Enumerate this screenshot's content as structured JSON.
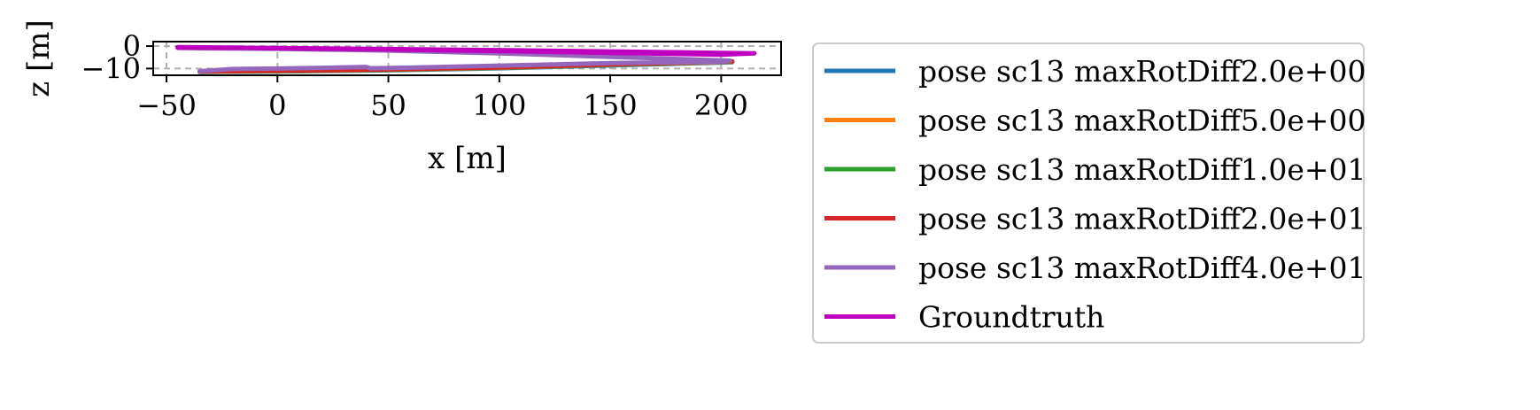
{
  "chart_data": {
    "type": "line",
    "xlabel": "x [m]",
    "ylabel": "z [m]",
    "xlim": [
      -56,
      227
    ],
    "ylim": [
      -13,
      2
    ],
    "xticks": [
      -50,
      0,
      50,
      100,
      150,
      200
    ],
    "xtick_labels": [
      "−50",
      "0",
      "50",
      "100",
      "150",
      "200"
    ],
    "yticks": [
      0,
      -10
    ],
    "ytick_labels": [
      "0",
      "−10"
    ],
    "grid": true,
    "legend_placement": "right, outside plot",
    "series": [
      {
        "name": "pose sc13 maxRotDiff2.0e+00",
        "color": "#1f77b4",
        "x": [
          -35,
          0,
          50,
          100,
          150,
          200,
          205
        ],
        "z": [
          -11.5,
          -11.3,
          -10.8,
          -9.9,
          -8.6,
          -7.3,
          -7.2
        ]
      },
      {
        "name": "pose sc13 maxRotDiff5.0e+00",
        "color": "#ff7f0e",
        "x": [
          -35,
          0,
          50,
          100,
          150,
          200,
          205
        ],
        "z": [
          -11.4,
          -11.2,
          -10.6,
          -9.7,
          -8.4,
          -7.1,
          -7.0
        ]
      },
      {
        "name": "pose sc13 maxRotDiff1.0e+01",
        "color": "#2ca02c",
        "x": [
          -35,
          0,
          50,
          100,
          150,
          200,
          205
        ],
        "z": [
          -11.4,
          -11.1,
          -10.5,
          -9.6,
          -8.3,
          -7.0,
          -6.9
        ]
      },
      {
        "name": "pose sc13 maxRotDiff2.0e+01",
        "color": "#d62728",
        "x": [
          -35,
          0,
          50,
          100,
          150,
          200,
          205
        ],
        "z": [
          -11.3,
          -11.0,
          -10.4,
          -9.5,
          -8.2,
          -6.9,
          -6.8
        ]
      },
      {
        "name": "pose sc13 maxRotDiff4.0e+01",
        "color": "#9467bd",
        "x": [
          -35,
          -20,
          0,
          20,
          40,
          42,
          60,
          100,
          150,
          200,
          204,
          150,
          100,
          50,
          0,
          -30,
          -45
        ],
        "z": [
          -11.2,
          -10.2,
          -10.0,
          -9.7,
          -9.3,
          -9.9,
          -9.6,
          -8.7,
          -7.6,
          -7.0,
          -6.5,
          -4.8,
          -3.2,
          -2.0,
          -1.2,
          -1.0,
          -0.8
        ]
      },
      {
        "name": "Groundtruth",
        "color": "#bf00bf",
        "x": [
          -45,
          -20,
          0,
          50,
          100,
          150,
          200,
          215,
          200,
          150,
          100,
          50,
          0,
          -45
        ],
        "z": [
          -0.5,
          -0.7,
          -1.0,
          -1.5,
          -2.2,
          -3.0,
          -3.8,
          -3.2,
          -3.0,
          -2.4,
          -1.8,
          -1.3,
          -0.9,
          -0.6
        ]
      }
    ]
  }
}
